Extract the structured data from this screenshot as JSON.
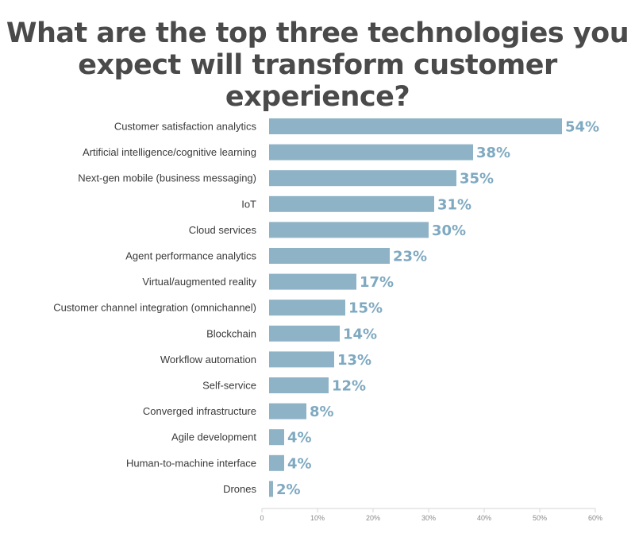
{
  "colors": {
    "title": "#4a4a4a",
    "bar": "#8eb2c6",
    "value_label": "#7fa9c1",
    "category_label": "#3a3a3a",
    "axis": "#d6d6d6",
    "tick_label": "#8a8a8a"
  },
  "chart_data": {
    "type": "bar",
    "orientation": "horizontal",
    "title": "What are the top three technologies you expect will transform customer experience?",
    "title_lines": [
      "What are the top three technologies you",
      "expect will transform customer experience?"
    ],
    "categories": [
      "Customer satisfaction analytics",
      "Artificial intelligence/cognitive learning",
      "Next-gen mobile (business messaging)",
      "IoT",
      "Cloud services",
      "Agent performance analytics",
      "Virtual/augmented reality",
      "Customer channel integration (omnichannel)",
      "Blockchain",
      "Workflow automation",
      "Self-service",
      "Converged infrastructure",
      "Agile development",
      "Human-to-machine interface",
      "Drones"
    ],
    "values": [
      54,
      38,
      35,
      31,
      30,
      23,
      17,
      15,
      14,
      13,
      12,
      8,
      4,
      4,
      2
    ],
    "value_labels": [
      "54%",
      "38%",
      "35%",
      "31%",
      "30%",
      "23%",
      "17%",
      "15%",
      "14%",
      "13%",
      "12%",
      "8%",
      "4%",
      "4%",
      "2%"
    ],
    "x_ticks": [
      0,
      10,
      20,
      30,
      40,
      50,
      60
    ],
    "x_tick_labels": [
      "0",
      "10%",
      "20%",
      "30%",
      "40%",
      "50%",
      "60%"
    ],
    "xlim": [
      0,
      60
    ],
    "grid": false,
    "legend": "none"
  }
}
